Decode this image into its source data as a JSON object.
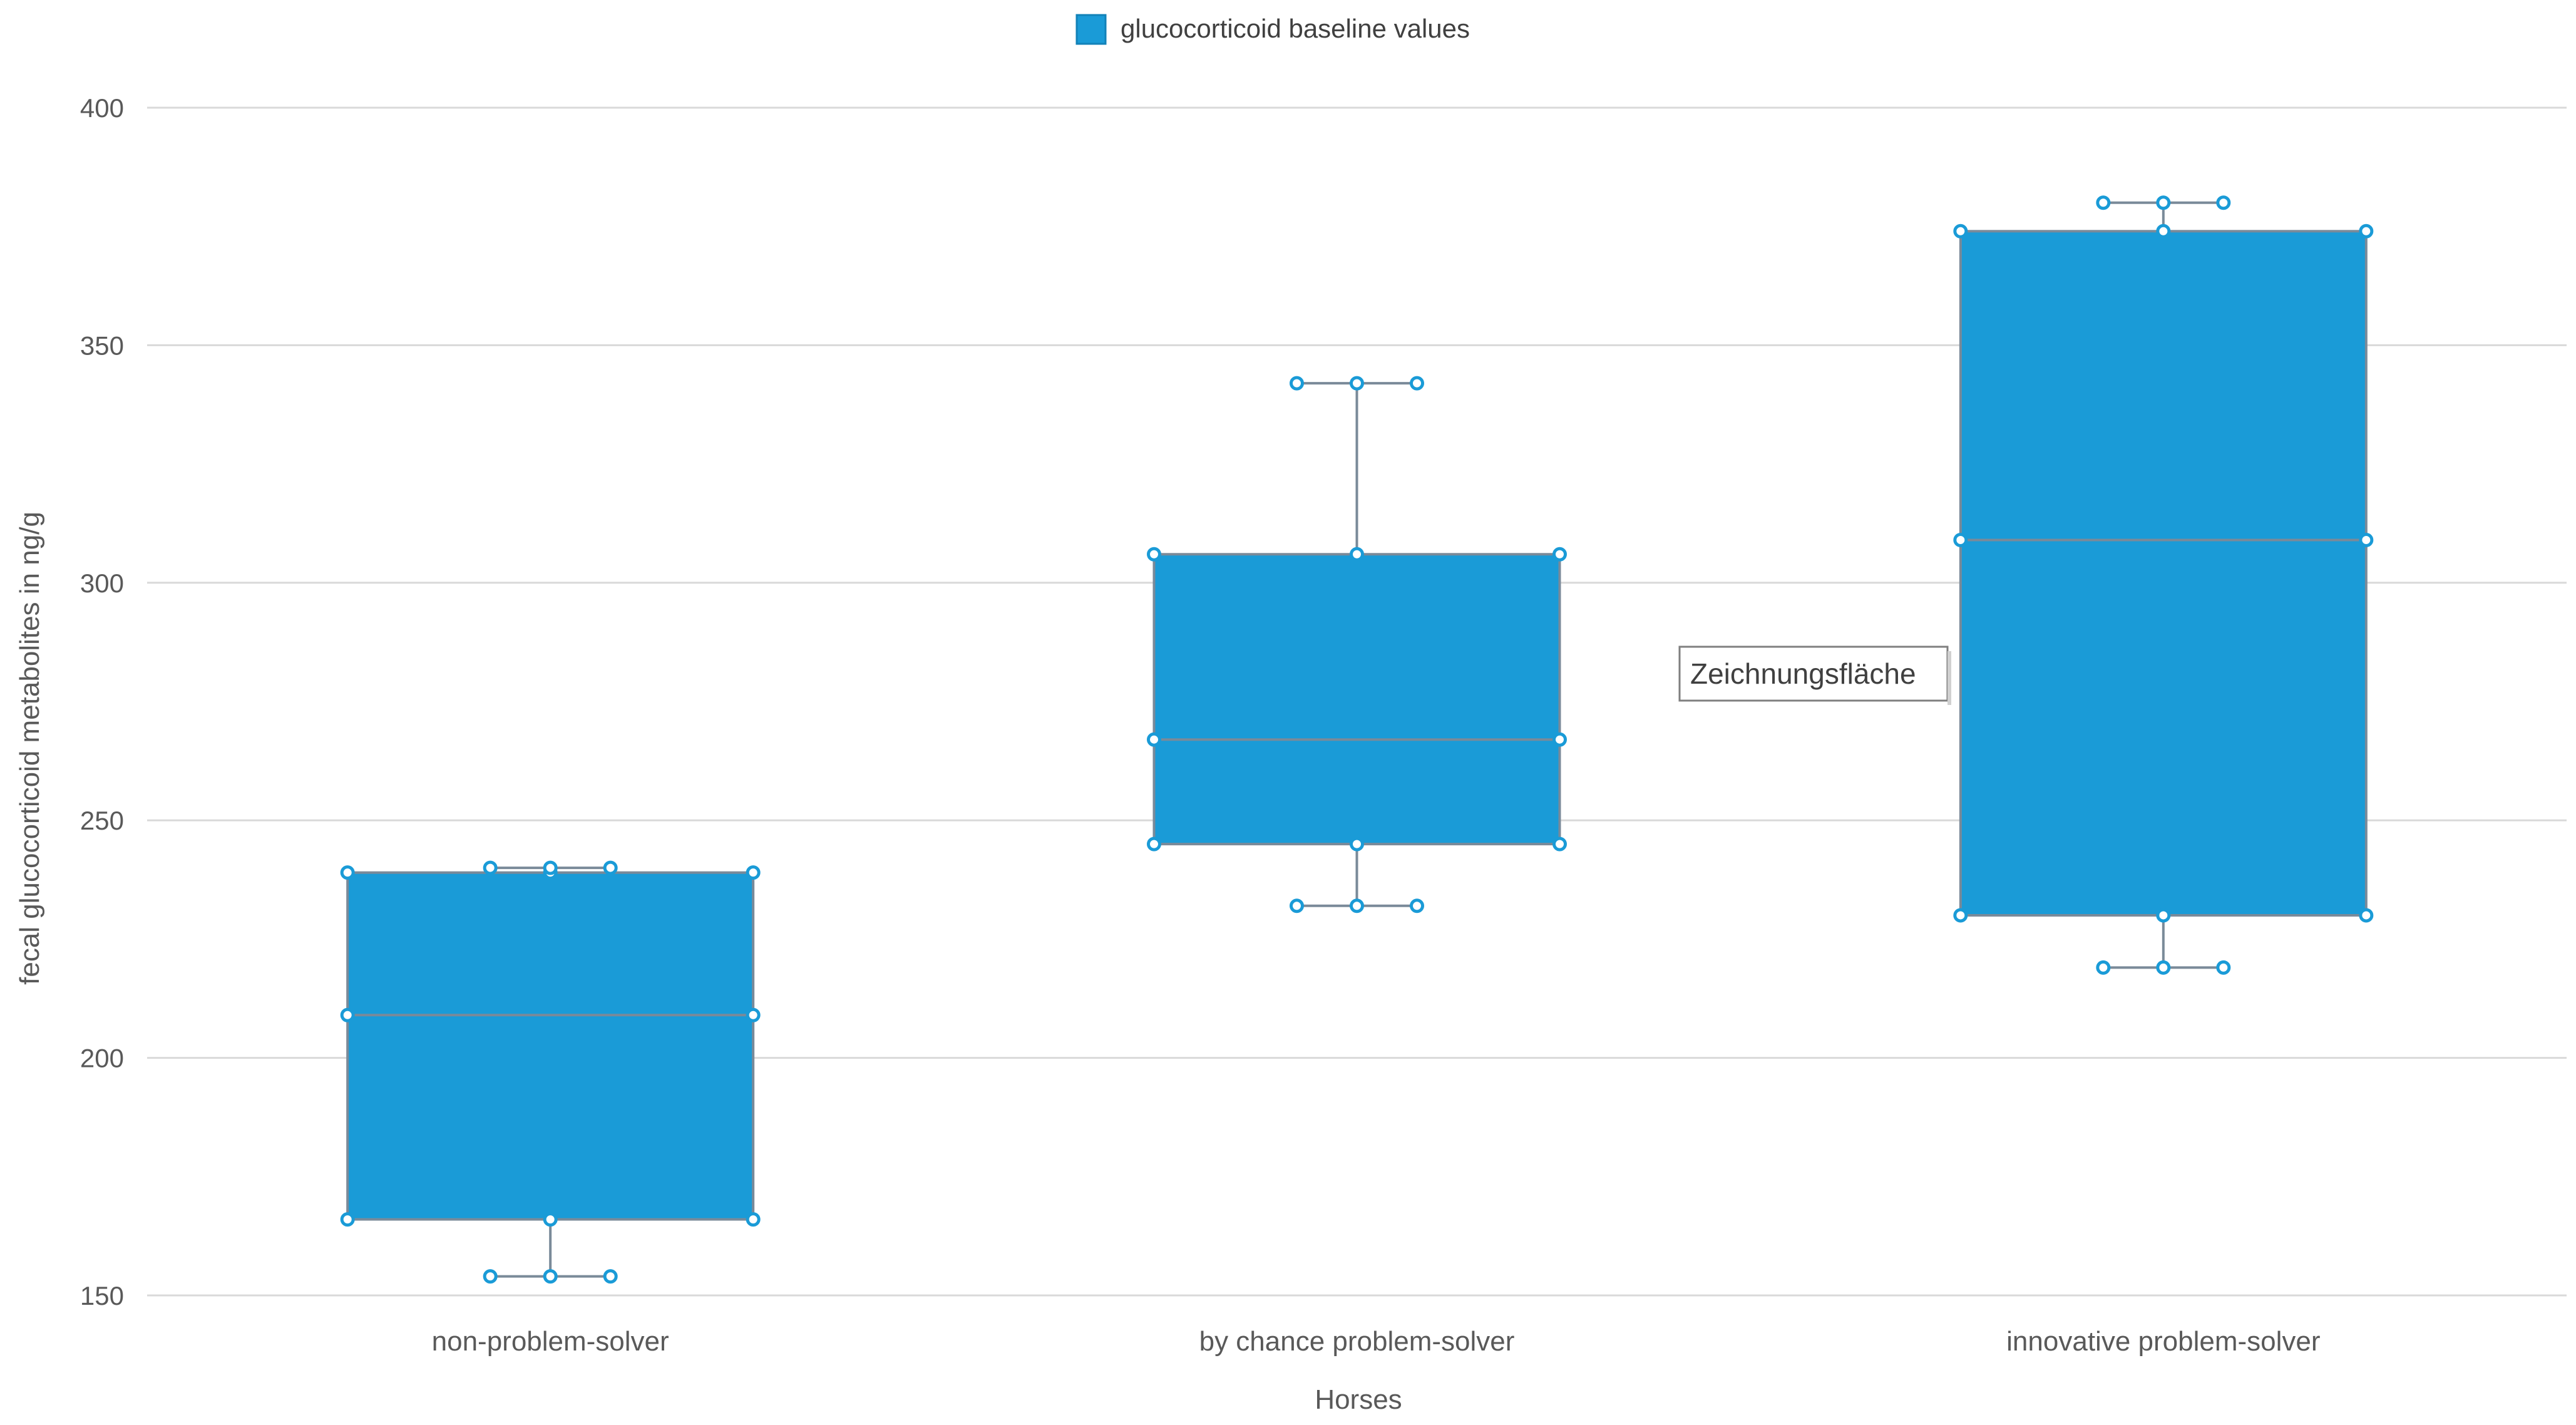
{
  "chart_data": {
    "type": "box",
    "title": "",
    "xlabel": "Horses",
    "ylabel": "fecal glucocorticoid metabolites in ng/g",
    "ylim": [
      150,
      400
    ],
    "yticks": [
      150,
      200,
      250,
      300,
      350,
      400
    ],
    "categories": [
      "non-problem-solver",
      "by chance problem-solver",
      "innovative problem-solver"
    ],
    "series": [
      {
        "name": "glucocorticoid baseline values",
        "color": "#1a9bd7",
        "boxes": [
          {
            "min": 154,
            "q1": 166,
            "median": 209,
            "q3": 239,
            "max": 240
          },
          {
            "min": 232,
            "q1": 245,
            "median": 267,
            "q3": 306,
            "max": 342
          },
          {
            "min": 219,
            "q1": 230,
            "median": 309,
            "q3": 374,
            "max": 380
          }
        ]
      }
    ],
    "legend": {
      "position": "top",
      "label": "glucocorticoid baseline values"
    },
    "grid": true
  },
  "tooltip": {
    "text": "Zeichnungsfläche"
  },
  "colors": {
    "box_fill": "#1a9bd7",
    "box_stroke": "#7a8a99",
    "handle_stroke": "#1a9bd7",
    "grid": "#d9d9d9",
    "text": "#595959"
  }
}
